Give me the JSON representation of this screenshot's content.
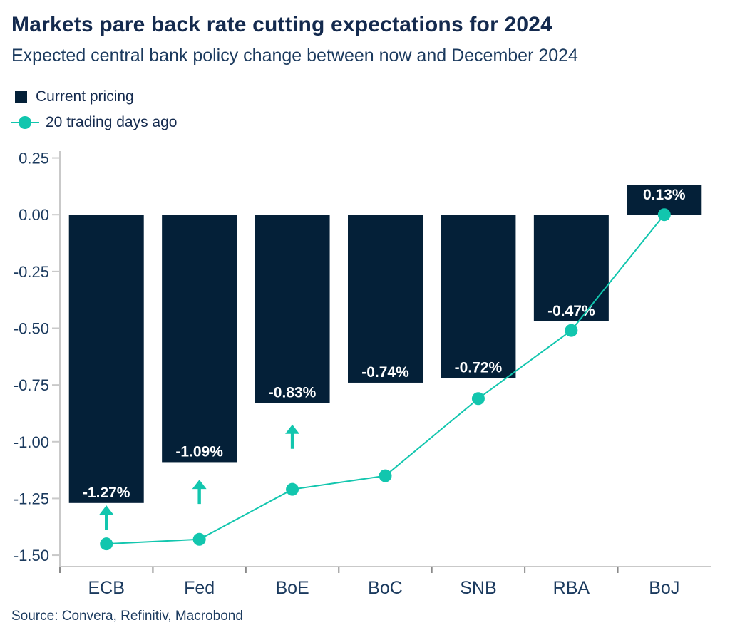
{
  "header": {
    "title": "Markets pare back rate cutting expectations for 2024",
    "subtitle": "Expected central bank policy change between now and December 2024"
  },
  "legend": {
    "items": [
      {
        "label": "Current pricing",
        "marker": "square",
        "color": "#042038"
      },
      {
        "label": "20 trading days ago",
        "marker": "line-dot",
        "color": "#12C6AE"
      }
    ]
  },
  "source": "Source: Convera, Refinitiv, Macrobond",
  "palette": {
    "bar": "#042038",
    "line": "#12C6AE",
    "arrow": "#12C6AE",
    "axis_line": "#C9C9C9",
    "tick_mark": "#8A8A8A",
    "title_text": "#142A4E",
    "axis_text": "#1B3A5E",
    "bar_label_text": "#FFFFFF",
    "background": "#FFFFFF"
  },
  "chart_data": {
    "type": "bar",
    "title": "Markets pare back rate cutting expectations for 2024",
    "subtitle": "Expected central bank policy change between now and December 2024",
    "categories": [
      "ECB",
      "Fed",
      "BoE",
      "BoC",
      "SNB",
      "RBA",
      "BoJ"
    ],
    "series": [
      {
        "name": "Current pricing",
        "type": "bar",
        "color": "#042038",
        "values": [
          -1.27,
          -1.09,
          -0.83,
          -0.74,
          -0.72,
          -0.47,
          0.13
        ],
        "data_labels": [
          "-1.27%",
          "-1.09%",
          "-0.83%",
          "-0.74%",
          "-0.72%",
          "-0.47%",
          "0.13%"
        ]
      },
      {
        "name": "20 trading days ago",
        "type": "line",
        "color": "#12C6AE",
        "values": [
          -1.45,
          -1.43,
          -1.21,
          -1.15,
          -0.81,
          -0.51,
          0.0
        ]
      }
    ],
    "arrows": {
      "direction": "up",
      "color": "#12C6AE",
      "category_indexes": [
        0,
        1,
        2
      ]
    },
    "xlabel": "",
    "ylabel": "",
    "ylim": [
      -1.55,
      0.28
    ],
    "yticks": [
      0.25,
      0.0,
      -0.25,
      -0.5,
      -0.75,
      -1.0,
      -1.25,
      -1.5
    ],
    "ytick_labels": [
      "0.25",
      "0.00",
      "-0.25",
      "-0.50",
      "-0.75",
      "-1.00",
      "-1.25",
      "-1.50"
    ],
    "grid": false,
    "legend_position": "top-left"
  }
}
